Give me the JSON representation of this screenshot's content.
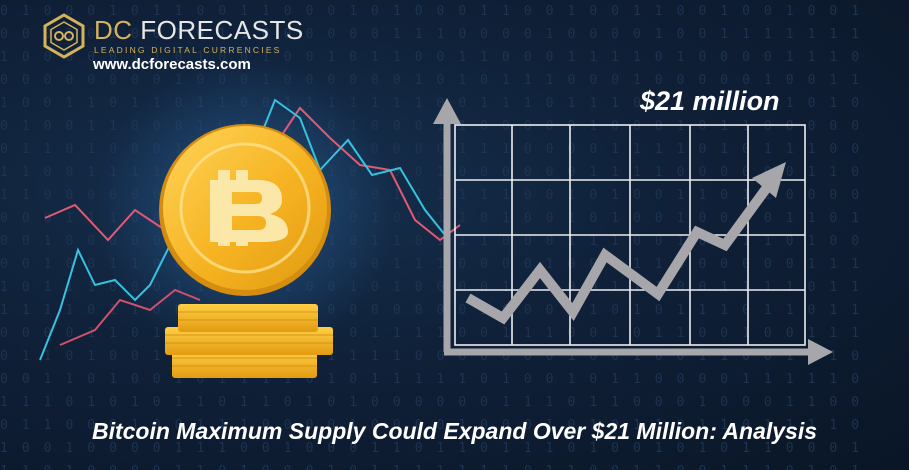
{
  "brand": {
    "name_part1": "DC",
    "name_part2": "FORECASTS",
    "tagline": "LEADING DIGITAL CURRENCIES",
    "website": "www.dcforecasts.com"
  },
  "colors": {
    "background": "#0f2038",
    "gold": "#f2b21e",
    "gold_dark": "#c8860c",
    "chart_line": "#a6a6ab",
    "trend_blue": "#35c3e0",
    "trend_red": "#e05a75"
  },
  "illustration": {
    "coin_icon": "bitcoin-icon",
    "chart_label": "$21 million"
  },
  "headline": "Bitcoin Maximum Supply Could Expand Over $21 Million: Analysis"
}
